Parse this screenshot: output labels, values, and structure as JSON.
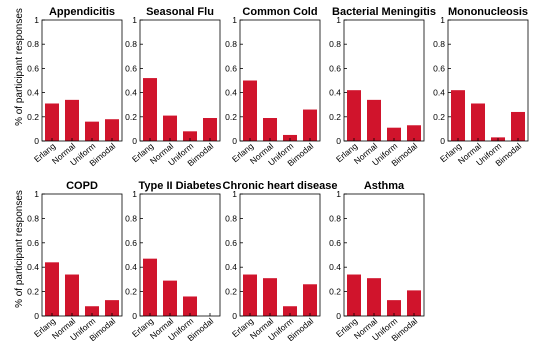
{
  "y_axis_label": "% of participant responses",
  "chart_data": [
    {
      "type": "bar",
      "title": "Appendicitis",
      "categories": [
        "Erlang",
        "Normal",
        "Uniform",
        "Bimodal"
      ],
      "values": [
        0.31,
        0.34,
        0.16,
        0.18
      ],
      "ylim": [
        0,
        1
      ],
      "yticks": [
        "0",
        "0.2",
        "0.4",
        "0.6",
        "0.8",
        "1"
      ]
    },
    {
      "type": "bar",
      "title": "Seasonal Flu",
      "categories": [
        "Erlang",
        "Normal",
        "Uniform",
        "Bimodal"
      ],
      "values": [
        0.52,
        0.21,
        0.08,
        0.19
      ],
      "ylim": [
        0,
        1
      ],
      "yticks": [
        "0",
        "0.2",
        "0.4",
        "0.6",
        "0.8",
        "1"
      ]
    },
    {
      "type": "bar",
      "title": "Common Cold",
      "categories": [
        "Erlang",
        "Normal",
        "Uniform",
        "Bimodal"
      ],
      "values": [
        0.5,
        0.19,
        0.05,
        0.26
      ],
      "ylim": [
        0,
        1
      ],
      "yticks": [
        "0",
        "0.2",
        "0.4",
        "0.6",
        "0.8",
        "1"
      ]
    },
    {
      "type": "bar",
      "title": "Bacterial Meningitis",
      "categories": [
        "Erlang",
        "Normal",
        "Uniform",
        "Bimodal"
      ],
      "values": [
        0.42,
        0.34,
        0.11,
        0.13
      ],
      "ylim": [
        0,
        1
      ],
      "yticks": [
        "0",
        "0.2",
        "0.4",
        "0.6",
        "0.8",
        "1"
      ]
    },
    {
      "type": "bar",
      "title": "Mononucleosis",
      "categories": [
        "Erlang",
        "Normal",
        "Uniform",
        "Bimodal"
      ],
      "values": [
        0.42,
        0.31,
        0.03,
        0.24
      ],
      "ylim": [
        0,
        1
      ],
      "yticks": [
        "0",
        "0.2",
        "0.4",
        "0.6",
        "0.8",
        "1"
      ]
    },
    {
      "type": "bar",
      "title": "COPD",
      "categories": [
        "Erlang",
        "Normal",
        "Uniform",
        "Bimodal"
      ],
      "values": [
        0.44,
        0.34,
        0.08,
        0.13
      ],
      "ylim": [
        0,
        1
      ],
      "yticks": [
        "0",
        "0.2",
        "0.4",
        "0.6",
        "0.8",
        "1"
      ]
    },
    {
      "type": "bar",
      "title": "Type II Diabetes",
      "categories": [
        "Erlang",
        "Normal",
        "Uniform",
        "Bimodal"
      ],
      "values": [
        0.47,
        0.29,
        0.16,
        0.0
      ],
      "ylim": [
        0,
        1
      ],
      "yticks": [
        "0",
        "0.2",
        "0.4",
        "0.6",
        "0.8",
        "1"
      ]
    },
    {
      "type": "bar",
      "title": "Chronic heart disease",
      "categories": [
        "Erlang",
        "Normal",
        "Uniform",
        "Bimodal"
      ],
      "values": [
        0.34,
        0.31,
        0.08,
        0.26
      ],
      "ylim": [
        0,
        1
      ],
      "yticks": [
        "0",
        "0.2",
        "0.4",
        "0.6",
        "0.8",
        "1"
      ]
    },
    {
      "type": "bar",
      "title": "Asthma",
      "categories": [
        "Erlang",
        "Normal",
        "Uniform",
        "Bimodal"
      ],
      "values": [
        0.34,
        0.31,
        0.13,
        0.21
      ],
      "ylim": [
        0,
        1
      ],
      "yticks": [
        "0",
        "0.2",
        "0.4",
        "0.6",
        "0.8",
        "1"
      ]
    }
  ],
  "colors": {
    "bar": "#d0142c",
    "axis": "#000000"
  }
}
